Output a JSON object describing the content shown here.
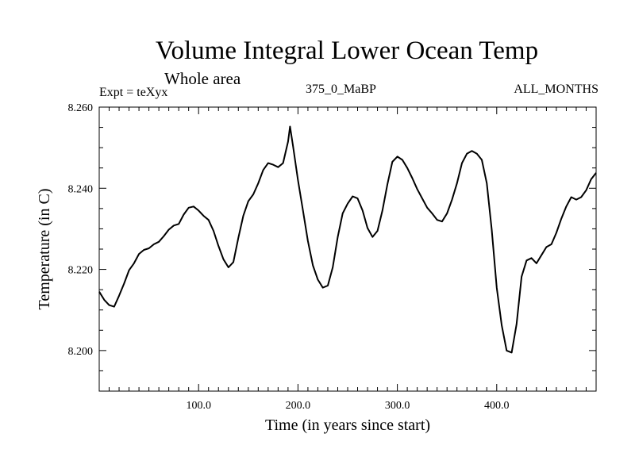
{
  "header": {
    "title": "Volume Integral Lower Ocean Temp",
    "subtitle": "Whole area",
    "expt": "Expt = teXyx",
    "period": "375_0_MaBP",
    "months": "ALL_MONTHS"
  },
  "chart_data": {
    "type": "line",
    "xlabel": "Time (in years since start)",
    "ylabel": "Temperature (in C)",
    "xlim": [
      0,
      500
    ],
    "ylim": [
      8.19,
      8.26
    ],
    "xticks": [
      100,
      200,
      300,
      400
    ],
    "xtick_labels": [
      "100.0",
      "200.0",
      "300.0",
      "400.0"
    ],
    "yticks": [
      8.2,
      8.22,
      8.24,
      8.26
    ],
    "ytick_labels": [
      "8.200",
      "8.220",
      "8.240",
      "8.260"
    ],
    "grid": false,
    "series": [
      {
        "color": "#000000",
        "x": [
          0,
          5,
          10,
          15,
          20,
          25,
          30,
          35,
          40,
          45,
          50,
          55,
          60,
          65,
          70,
          75,
          80,
          85,
          90,
          95,
          100,
          105,
          110,
          115,
          120,
          125,
          130,
          135,
          140,
          145,
          150,
          155,
          160,
          165,
          170,
          175,
          180,
          185,
          190,
          192,
          195,
          200,
          205,
          210,
          215,
          220,
          225,
          230,
          235,
          240,
          245,
          250,
          255,
          260,
          265,
          270,
          275,
          280,
          285,
          290,
          295,
          300,
          305,
          310,
          315,
          320,
          325,
          330,
          335,
          340,
          345,
          350,
          355,
          360,
          365,
          370,
          375,
          380,
          385,
          390,
          395,
          400,
          405,
          410,
          415,
          420,
          425,
          430,
          435,
          440,
          445,
          450,
          455,
          460,
          465,
          470,
          475,
          480,
          485,
          490,
          495,
          500
        ],
        "y": [
          8.2145,
          8.2125,
          8.2112,
          8.2108,
          8.2135,
          8.2165,
          8.2198,
          8.2215,
          8.2238,
          8.2248,
          8.2252,
          8.2262,
          8.2268,
          8.2282,
          8.2298,
          8.2308,
          8.2312,
          8.2335,
          8.2352,
          8.2355,
          8.2345,
          8.2332,
          8.2322,
          8.2295,
          8.2258,
          8.2225,
          8.2205,
          8.2218,
          8.2278,
          8.2332,
          8.2368,
          8.2385,
          8.2412,
          8.2445,
          8.2462,
          8.2458,
          8.2452,
          8.2462,
          8.2515,
          8.2552,
          8.2505,
          8.242,
          8.2345,
          8.227,
          8.221,
          8.2175,
          8.2155,
          8.216,
          8.2205,
          8.228,
          8.2338,
          8.2362,
          8.238,
          8.2375,
          8.2345,
          8.2302,
          8.228,
          8.2295,
          8.2345,
          8.241,
          8.2465,
          8.2478,
          8.247,
          8.245,
          8.2425,
          8.2398,
          8.2375,
          8.2352,
          8.2338,
          8.2322,
          8.2318,
          8.2338,
          8.2372,
          8.2412,
          8.2462,
          8.2485,
          8.2492,
          8.2485,
          8.247,
          8.2412,
          8.2298,
          8.2155,
          8.2062,
          8.2,
          8.1995,
          8.2065,
          8.2182,
          8.2222,
          8.2228,
          8.2215,
          8.2235,
          8.2255,
          8.2262,
          8.229,
          8.2325,
          8.2355,
          8.2378,
          8.2372,
          8.2378,
          8.2395,
          8.2422,
          8.2438
        ]
      }
    ]
  }
}
